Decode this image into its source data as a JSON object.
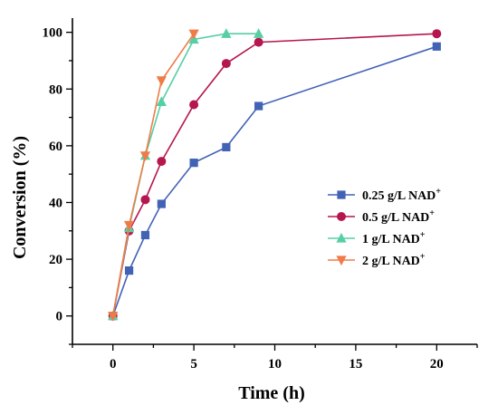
{
  "chart_data": {
    "type": "line",
    "xlabel": "Time (h)",
    "ylabel": "Conversion (%)",
    "xlim": [
      -2.5,
      22.5
    ],
    "ylim": [
      -10,
      105
    ],
    "xticks": [
      0,
      5,
      10,
      15,
      20
    ],
    "yticks": [
      0,
      20,
      40,
      60,
      80,
      100
    ],
    "x_tick_labels": [
      "0",
      "5",
      "10",
      "15",
      "20"
    ],
    "y_tick_labels": [
      "0",
      "20",
      "40",
      "60",
      "80",
      "100"
    ],
    "grid": false,
    "legend_position": "right",
    "series": [
      {
        "name": "0.25 g/L NAD",
        "name_superscript": "+",
        "color": "#4262b5",
        "marker": "square",
        "x": [
          0,
          1,
          2,
          3,
          5,
          7,
          9,
          20
        ],
        "y": [
          0,
          16,
          28.5,
          39.5,
          54,
          59.5,
          74,
          95
        ]
      },
      {
        "name": "0.5 g/L NAD",
        "name_superscript": "+",
        "color": "#b5164f",
        "marker": "circle",
        "x": [
          0,
          1,
          2,
          3,
          5,
          7,
          9,
          20
        ],
        "y": [
          0,
          30,
          41,
          54.5,
          74.5,
          89,
          96.5,
          99.5
        ]
      },
      {
        "name": "1 g/L NAD",
        "name_superscript": "+",
        "color": "#56cfa5",
        "marker": "triangle-up",
        "x": [
          0,
          1,
          2,
          3,
          5,
          7,
          9
        ],
        "y": [
          0,
          31,
          56.5,
          75.5,
          97.5,
          99.5,
          99.5
        ]
      },
      {
        "name": "2 g/L NAD",
        "name_superscript": "+",
        "color": "#f07b48",
        "marker": "triangle-down",
        "x": [
          0,
          1,
          2,
          3,
          5
        ],
        "y": [
          0,
          32,
          56.5,
          83,
          99.5
        ]
      }
    ]
  }
}
